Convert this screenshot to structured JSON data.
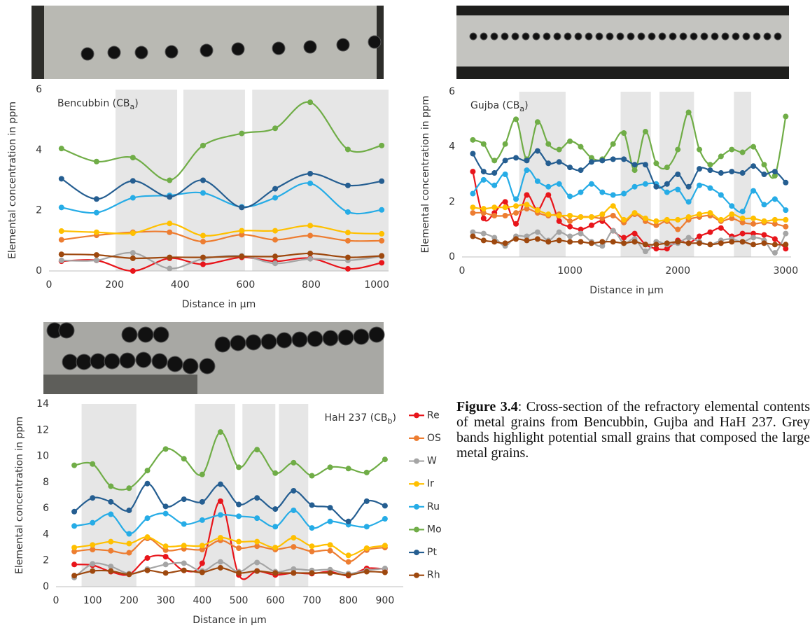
{
  "chart_data": [
    {
      "type": "line",
      "title": "Bencubbin (CB",
      "title_subscript": "a",
      "title_suffix": ")",
      "title_position": "top-left",
      "xlabel": "Distance in µm",
      "ylabel": "Elemental concentration in ppm",
      "x": [
        38,
        145,
        256,
        368,
        470,
        588,
        690,
        797,
        912,
        1015
      ],
      "xlim": [
        0,
        1036
      ],
      "xticks": [
        0,
        200,
        400,
        600,
        800,
        1000
      ],
      "ylim": [
        0,
        6
      ],
      "yticks": [
        0,
        2,
        4,
        6
      ],
      "bands": [
        [
          203,
          391
        ],
        [
          410,
          598
        ],
        [
          620,
          1036
        ]
      ],
      "series": [
        {
          "color": "#e8151b",
          "values": [
            0.32,
            0.35,
            0.0,
            0.42,
            0.22,
            0.45,
            0.32,
            0.42,
            0.07,
            0.27
          ]
        },
        {
          "color": "#ed7d31",
          "values": [
            1.03,
            1.18,
            1.28,
            1.28,
            0.97,
            1.2,
            1.03,
            1.17,
            1.0,
            1.0
          ]
        },
        {
          "color": "#a5a5a5",
          "values": [
            0.35,
            0.35,
            0.6,
            0.08,
            0.4,
            0.5,
            0.25,
            0.4,
            0.35,
            0.48
          ]
        },
        {
          "color": "#ffc000",
          "values": [
            1.32,
            1.28,
            1.25,
            1.57,
            1.17,
            1.33,
            1.33,
            1.5,
            1.27,
            1.23
          ]
        },
        {
          "color": "#26ace6",
          "values": [
            2.1,
            1.93,
            2.42,
            2.5,
            2.58,
            2.12,
            2.42,
            2.9,
            1.95,
            2.02
          ]
        },
        {
          "color": "#70ad47",
          "values": [
            4.05,
            3.62,
            3.75,
            3.0,
            4.15,
            4.55,
            4.72,
            5.58,
            4.02,
            4.15
          ]
        },
        {
          "color": "#255e91",
          "values": [
            3.05,
            2.38,
            2.98,
            2.45,
            3.0,
            2.1,
            2.72,
            3.22,
            2.83,
            2.97
          ]
        },
        {
          "color": "#9e480e",
          "values": [
            0.55,
            0.53,
            0.42,
            0.45,
            0.45,
            0.48,
            0.48,
            0.58,
            0.45,
            0.5
          ]
        }
      ]
    },
    {
      "type": "line",
      "title": "Gujba (CB",
      "title_subscript": "a",
      "title_suffix": ")",
      "title_position": "top-left",
      "xlabel": "Distance in µm",
      "ylabel": "Elemental concentration in ppm",
      "x": [
        100,
        200,
        300,
        400,
        500,
        600,
        700,
        800,
        900,
        1000,
        1100,
        1200,
        1300,
        1400,
        1500,
        1600,
        1700,
        1800,
        1900,
        2000,
        2100,
        2200,
        2300,
        2400,
        2500,
        2600,
        2700,
        2800,
        2900,
        3000
      ],
      "xlim": [
        0,
        3050
      ],
      "xticks": [
        0,
        1000,
        2000,
        3000
      ],
      "ylim": [
        0,
        6
      ],
      "yticks": [
        0,
        2,
        4,
        6
      ],
      "bands": [
        [
          530,
          960
        ],
        [
          1470,
          1750
        ],
        [
          1830,
          2150
        ],
        [
          2520,
          2680
        ]
      ],
      "series": [
        {
          "color": "#e8151b",
          "values": [
            3.1,
            1.4,
            1.6,
            2.0,
            1.2,
            2.25,
            1.7,
            2.25,
            1.3,
            1.1,
            1.0,
            1.15,
            1.3,
            0.95,
            0.7,
            0.85,
            0.45,
            0.3,
            0.3,
            0.6,
            0.5,
            0.75,
            0.9,
            1.05,
            0.75,
            0.85,
            0.85,
            0.8,
            0.65,
            0.3
          ]
        },
        {
          "color": "#ed7d31",
          "values": [
            1.6,
            1.6,
            1.5,
            1.5,
            1.6,
            1.75,
            1.6,
            1.5,
            1.55,
            1.3,
            1.45,
            1.45,
            1.4,
            1.5,
            1.25,
            1.55,
            1.3,
            1.15,
            1.3,
            1.0,
            1.35,
            1.45,
            1.5,
            1.3,
            1.4,
            1.25,
            1.2,
            1.25,
            1.2,
            1.1
          ]
        },
        {
          "color": "#a5a5a5",
          "values": [
            0.9,
            0.85,
            0.7,
            0.4,
            0.75,
            0.75,
            0.9,
            0.6,
            0.9,
            0.75,
            0.85,
            0.55,
            0.4,
            0.95,
            0.5,
            0.65,
            0.2,
            0.55,
            0.45,
            0.5,
            0.7,
            0.55,
            0.45,
            0.6,
            0.65,
            0.55,
            0.7,
            0.6,
            0.15,
            0.85
          ]
        },
        {
          "color": "#ffc000",
          "values": [
            1.8,
            1.75,
            1.8,
            1.8,
            1.85,
            1.9,
            1.7,
            1.55,
            1.5,
            1.5,
            1.45,
            1.45,
            1.55,
            1.85,
            1.35,
            1.6,
            1.4,
            1.3,
            1.35,
            1.35,
            1.45,
            1.55,
            1.6,
            1.35,
            1.55,
            1.4,
            1.4,
            1.3,
            1.35,
            1.35
          ]
        },
        {
          "color": "#26ace6",
          "values": [
            2.3,
            2.8,
            2.6,
            3.0,
            2.1,
            3.15,
            2.75,
            2.55,
            2.65,
            2.2,
            2.35,
            2.65,
            2.35,
            2.25,
            2.3,
            2.55,
            2.65,
            2.65,
            2.35,
            2.45,
            2.0,
            2.6,
            2.5,
            2.25,
            1.85,
            1.65,
            2.4,
            1.9,
            2.1,
            1.7
          ]
        },
        {
          "color": "#70ad47",
          "values": [
            4.25,
            4.1,
            3.5,
            4.1,
            5.0,
            3.55,
            4.9,
            4.1,
            3.9,
            4.2,
            4.0,
            3.6,
            3.55,
            4.1,
            4.5,
            3.15,
            4.55,
            3.4,
            3.25,
            3.9,
            5.25,
            3.9,
            3.35,
            3.65,
            3.9,
            3.8,
            4.0,
            3.35,
            2.95,
            5.1
          ]
        },
        {
          "color": "#255e91",
          "values": [
            3.75,
            3.1,
            3.05,
            3.5,
            3.6,
            3.5,
            3.85,
            3.4,
            3.45,
            3.25,
            3.15,
            3.45,
            3.5,
            3.55,
            3.55,
            3.35,
            3.35,
            2.55,
            2.65,
            3.0,
            2.55,
            3.2,
            3.15,
            3.05,
            3.1,
            3.05,
            3.3,
            3.0,
            3.1,
            2.7
          ]
        },
        {
          "color": "#9e480e",
          "values": [
            0.75,
            0.6,
            0.55,
            0.5,
            0.65,
            0.6,
            0.65,
            0.55,
            0.6,
            0.55,
            0.55,
            0.5,
            0.55,
            0.55,
            0.5,
            0.55,
            0.45,
            0.45,
            0.5,
            0.55,
            0.5,
            0.5,
            0.45,
            0.5,
            0.55,
            0.55,
            0.45,
            0.5,
            0.45,
            0.45
          ]
        }
      ]
    },
    {
      "type": "line",
      "title": "HaH 237 (CB",
      "title_subscript": "b",
      "title_suffix": ")",
      "title_position": "top-right",
      "xlabel": "Distance in µm",
      "ylabel": "Elemental concentration in ppm",
      "x": [
        50,
        100,
        150,
        200,
        250,
        300,
        350,
        400,
        450,
        500,
        550,
        600,
        650,
        700,
        750,
        800,
        850,
        900
      ],
      "xlim": [
        0,
        950
      ],
      "xticks": [
        0,
        100,
        200,
        300,
        400,
        500,
        600,
        700,
        800,
        900
      ],
      "ylim": [
        0,
        14
      ],
      "yticks": [
        0,
        2,
        4,
        6,
        8,
        10,
        12,
        14
      ],
      "bands": [
        [
          70,
          220
        ],
        [
          380,
          490
        ],
        [
          510,
          600
        ],
        [
          610,
          690
        ]
      ],
      "legend": "right",
      "series": [
        {
          "name": "Re",
          "color": "#e8151b",
          "values": [
            1.7,
            1.65,
            1.15,
            0.95,
            2.2,
            2.3,
            1.25,
            1.8,
            6.55,
            0.9,
            1.2,
            0.9,
            1.05,
            1.0,
            1.15,
            0.85,
            1.4,
            1.35
          ]
        },
        {
          "name": "OS",
          "color": "#ed7d31",
          "values": [
            2.7,
            2.85,
            2.75,
            2.6,
            3.7,
            2.8,
            2.9,
            2.85,
            3.55,
            2.95,
            3.1,
            2.85,
            3.05,
            2.7,
            2.75,
            1.9,
            2.8,
            3.0
          ]
        },
        {
          "name": "W",
          "color": "#a5a5a5",
          "values": [
            0.7,
            1.75,
            1.55,
            1.0,
            1.35,
            1.7,
            1.8,
            1.2,
            1.9,
            1.15,
            1.85,
            1.15,
            1.35,
            1.25,
            1.3,
            1.0,
            1.25,
            1.4
          ]
        },
        {
          "name": "Ir",
          "color": "#ffc000",
          "values": [
            3.0,
            3.2,
            3.45,
            3.3,
            3.8,
            3.1,
            3.15,
            3.15,
            3.75,
            3.45,
            3.45,
            3.0,
            3.75,
            3.1,
            3.2,
            2.4,
            2.95,
            3.15
          ]
        },
        {
          "name": "Ru",
          "color": "#26ace6",
          "values": [
            4.65,
            4.9,
            5.55,
            4.05,
            5.25,
            5.6,
            4.8,
            5.1,
            5.5,
            5.4,
            5.25,
            4.6,
            5.85,
            4.5,
            5.0,
            4.75,
            4.6,
            5.2
          ]
        },
        {
          "name": "Mo",
          "color": "#70ad47",
          "values": [
            9.3,
            9.4,
            7.7,
            7.55,
            8.9,
            10.55,
            9.8,
            8.6,
            11.85,
            9.15,
            10.5,
            8.7,
            9.5,
            8.5,
            9.15,
            9.05,
            8.75,
            9.75
          ]
        },
        {
          "name": "Pt",
          "color": "#255e91",
          "values": [
            5.75,
            6.8,
            6.5,
            5.85,
            7.9,
            6.15,
            6.7,
            6.5,
            7.85,
            6.3,
            6.8,
            5.95,
            7.35,
            6.25,
            6.05,
            5.0,
            6.55,
            6.2
          ]
        },
        {
          "name": "Rh",
          "color": "#9e480e",
          "values": [
            0.85,
            1.2,
            1.2,
            0.95,
            1.25,
            1.05,
            1.25,
            1.1,
            1.45,
            1.05,
            1.2,
            1.05,
            1.05,
            1.05,
            1.05,
            0.9,
            1.15,
            1.1
          ]
        }
      ]
    }
  ],
  "caption": {
    "label": "Figure 3.4",
    "text": ": Cross-section of the refractory elemental contents of metal grains from Bencubbin, Gujba and HaH 237. Grey bands highlight potential small grains that composed the large metal grains."
  }
}
